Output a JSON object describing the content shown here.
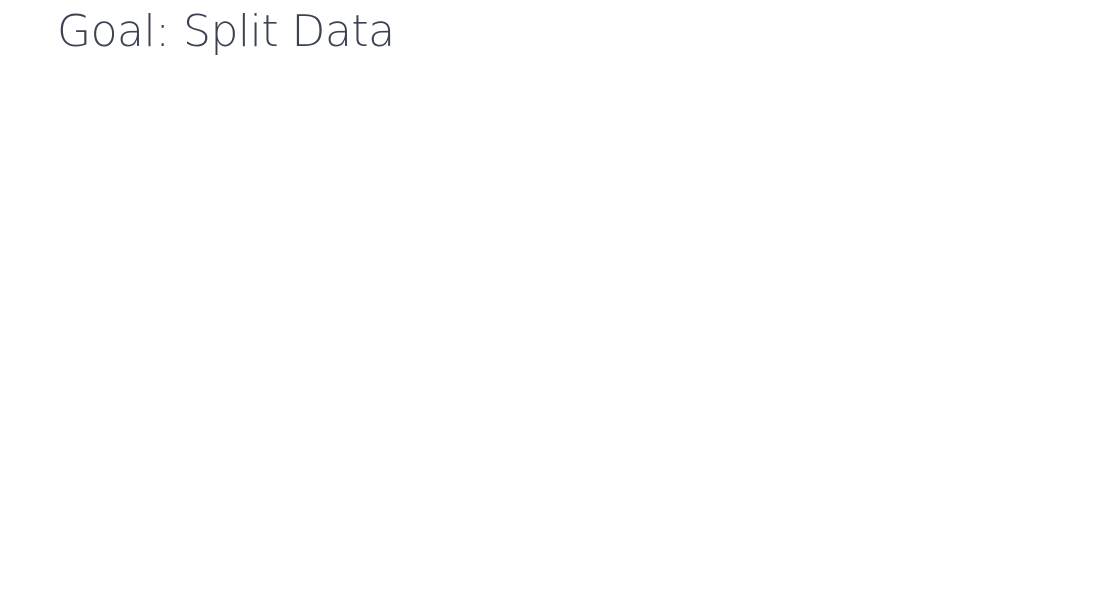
{
  "header": {
    "title": "Goal: Split Data"
  }
}
